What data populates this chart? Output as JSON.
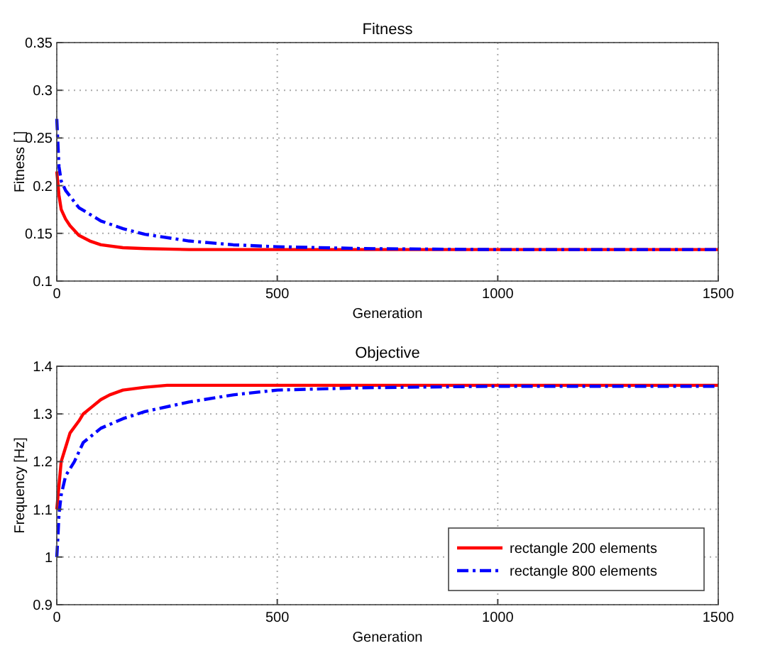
{
  "chart_data": [
    {
      "type": "line",
      "title": "Fitness",
      "xlabel": "Generation",
      "ylabel": "Fitness [ ]",
      "xlim": [
        0,
        1500
      ],
      "xticks": [
        0,
        500,
        1000,
        1500
      ],
      "ylim": [
        0.1,
        0.35
      ],
      "yticks": [
        0.1,
        0.15,
        0.2,
        0.25,
        0.3,
        0.35
      ],
      "grid": true,
      "legend": false,
      "series": [
        {
          "color": "#ff0000",
          "line_style": "solid",
          "x": [
            0,
            5,
            10,
            20,
            30,
            50,
            75,
            100,
            150,
            200,
            300,
            500,
            1500
          ],
          "values": [
            0.215,
            0.19,
            0.175,
            0.165,
            0.158,
            0.148,
            0.142,
            0.138,
            0.135,
            0.134,
            0.133,
            0.133,
            0.133
          ]
        },
        {
          "color": "#0000ff",
          "line_style": "dashdot",
          "x": [
            0,
            3,
            5,
            10,
            20,
            50,
            100,
            150,
            200,
            300,
            400,
            500,
            700,
            1000,
            1500
          ],
          "values": [
            0.27,
            0.24,
            0.22,
            0.205,
            0.195,
            0.177,
            0.163,
            0.155,
            0.149,
            0.142,
            0.138,
            0.136,
            0.134,
            0.133,
            0.133
          ]
        }
      ]
    },
    {
      "type": "line",
      "title": "Objective",
      "xlabel": "Generation",
      "ylabel": "Frequency [Hz]",
      "xlim": [
        0,
        1500
      ],
      "xticks": [
        0,
        500,
        1000,
        1500
      ],
      "ylim": [
        0.9,
        1.4
      ],
      "yticks": [
        0.9,
        1,
        1.1,
        1.2,
        1.3,
        1.4
      ],
      "grid": true,
      "legend": "bottom right",
      "series": [
        {
          "name": "rectangle 200 elements",
          "color": "#ff0000",
          "line_style": "solid",
          "x": [
            0,
            5,
            10,
            20,
            30,
            50,
            60,
            80,
            100,
            120,
            150,
            200,
            250,
            1500
          ],
          "values": [
            1.1,
            1.15,
            1.2,
            1.23,
            1.26,
            1.285,
            1.3,
            1.315,
            1.33,
            1.34,
            1.35,
            1.356,
            1.36,
            1.36
          ]
        },
        {
          "name": "rectangle 800 elements",
          "color": "#0000ff",
          "line_style": "dashdot",
          "x": [
            0,
            3,
            5,
            10,
            20,
            40,
            60,
            100,
            150,
            200,
            300,
            400,
            500,
            700,
            1000,
            1500
          ],
          "values": [
            1.0,
            1.05,
            1.09,
            1.13,
            1.17,
            1.2,
            1.24,
            1.27,
            1.29,
            1.305,
            1.325,
            1.34,
            1.35,
            1.355,
            1.358,
            1.358
          ]
        }
      ]
    }
  ]
}
